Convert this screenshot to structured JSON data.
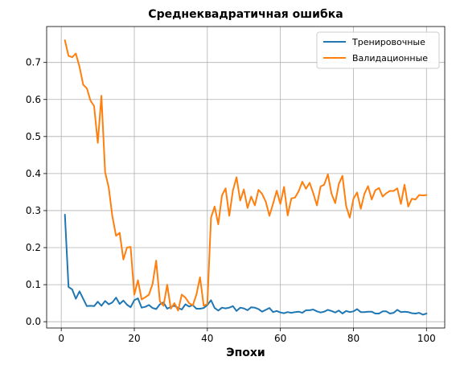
{
  "chart_data": {
    "type": "line",
    "title": "Среднеквадратичная ошибка",
    "xlabel": "Эпохи",
    "ylabel": "",
    "xlim": [
      -4,
      105
    ],
    "ylim": [
      -0.017,
      0.797
    ],
    "xticks": [
      0,
      20,
      40,
      60,
      80,
      100
    ],
    "yticks": [
      0.0,
      0.1,
      0.2,
      0.3,
      0.4,
      0.5,
      0.6,
      0.7
    ],
    "grid": true,
    "legend": "top-right",
    "x": [
      1,
      2,
      3,
      4,
      5,
      6,
      7,
      8,
      9,
      10,
      11,
      12,
      13,
      14,
      15,
      16,
      17,
      18,
      19,
      20,
      21,
      22,
      23,
      24,
      25,
      26,
      27,
      28,
      29,
      30,
      31,
      32,
      33,
      34,
      35,
      36,
      37,
      38,
      39,
      40,
      41,
      42,
      43,
      44,
      45,
      46,
      47,
      48,
      49,
      50,
      51,
      52,
      53,
      54,
      55,
      56,
      57,
      58,
      59,
      60,
      61,
      62,
      63,
      64,
      65,
      66,
      67,
      68,
      69,
      70,
      71,
      72,
      73,
      74,
      75,
      76,
      77,
      78,
      79,
      80,
      81,
      82,
      83,
      84,
      85,
      86,
      87,
      88,
      89,
      90,
      91,
      92,
      93,
      94,
      95,
      96,
      97,
      98,
      99,
      100
    ],
    "series": [
      {
        "name": "Тренировочные",
        "color": "#1f77b4",
        "values": [
          0.289,
          0.094,
          0.087,
          0.062,
          0.082,
          0.062,
          0.042,
          0.043,
          0.042,
          0.054,
          0.043,
          0.056,
          0.047,
          0.052,
          0.065,
          0.048,
          0.057,
          0.046,
          0.039,
          0.058,
          0.063,
          0.038,
          0.04,
          0.045,
          0.037,
          0.034,
          0.047,
          0.052,
          0.035,
          0.04,
          0.043,
          0.037,
          0.033,
          0.047,
          0.041,
          0.045,
          0.035,
          0.035,
          0.037,
          0.045,
          0.058,
          0.037,
          0.03,
          0.038,
          0.036,
          0.038,
          0.042,
          0.029,
          0.038,
          0.036,
          0.031,
          0.039,
          0.038,
          0.034,
          0.027,
          0.032,
          0.037,
          0.026,
          0.029,
          0.025,
          0.023,
          0.026,
          0.024,
          0.026,
          0.027,
          0.024,
          0.031,
          0.031,
          0.033,
          0.028,
          0.025,
          0.027,
          0.032,
          0.029,
          0.025,
          0.03,
          0.022,
          0.029,
          0.026,
          0.028,
          0.034,
          0.026,
          0.026,
          0.027,
          0.027,
          0.022,
          0.022,
          0.028,
          0.028,
          0.022,
          0.024,
          0.032,
          0.026,
          0.027,
          0.026,
          0.023,
          0.022,
          0.024,
          0.019,
          0.022
        ]
      },
      {
        "name": "Валидационные",
        "color": "#ff7f0e",
        "values": [
          0.76,
          0.718,
          0.714,
          0.724,
          0.688,
          0.64,
          0.63,
          0.597,
          0.582,
          0.483,
          0.61,
          0.404,
          0.362,
          0.285,
          0.232,
          0.24,
          0.168,
          0.2,
          0.202,
          0.073,
          0.112,
          0.06,
          0.066,
          0.073,
          0.102,
          0.165,
          0.055,
          0.043,
          0.1,
          0.035,
          0.05,
          0.03,
          0.073,
          0.065,
          0.05,
          0.044,
          0.073,
          0.12,
          0.043,
          0.048,
          0.281,
          0.311,
          0.263,
          0.341,
          0.36,
          0.286,
          0.354,
          0.39,
          0.327,
          0.357,
          0.307,
          0.338,
          0.314,
          0.356,
          0.345,
          0.324,
          0.286,
          0.319,
          0.354,
          0.318,
          0.364,
          0.287,
          0.333,
          0.335,
          0.352,
          0.378,
          0.359,
          0.375,
          0.347,
          0.314,
          0.365,
          0.37,
          0.398,
          0.346,
          0.32,
          0.372,
          0.394,
          0.312,
          0.281,
          0.332,
          0.349,
          0.305,
          0.345,
          0.366,
          0.33,
          0.355,
          0.361,
          0.338,
          0.347,
          0.353,
          0.353,
          0.36,
          0.318,
          0.37,
          0.311,
          0.332,
          0.33,
          0.342,
          0.341,
          0.342
        ]
      }
    ]
  }
}
